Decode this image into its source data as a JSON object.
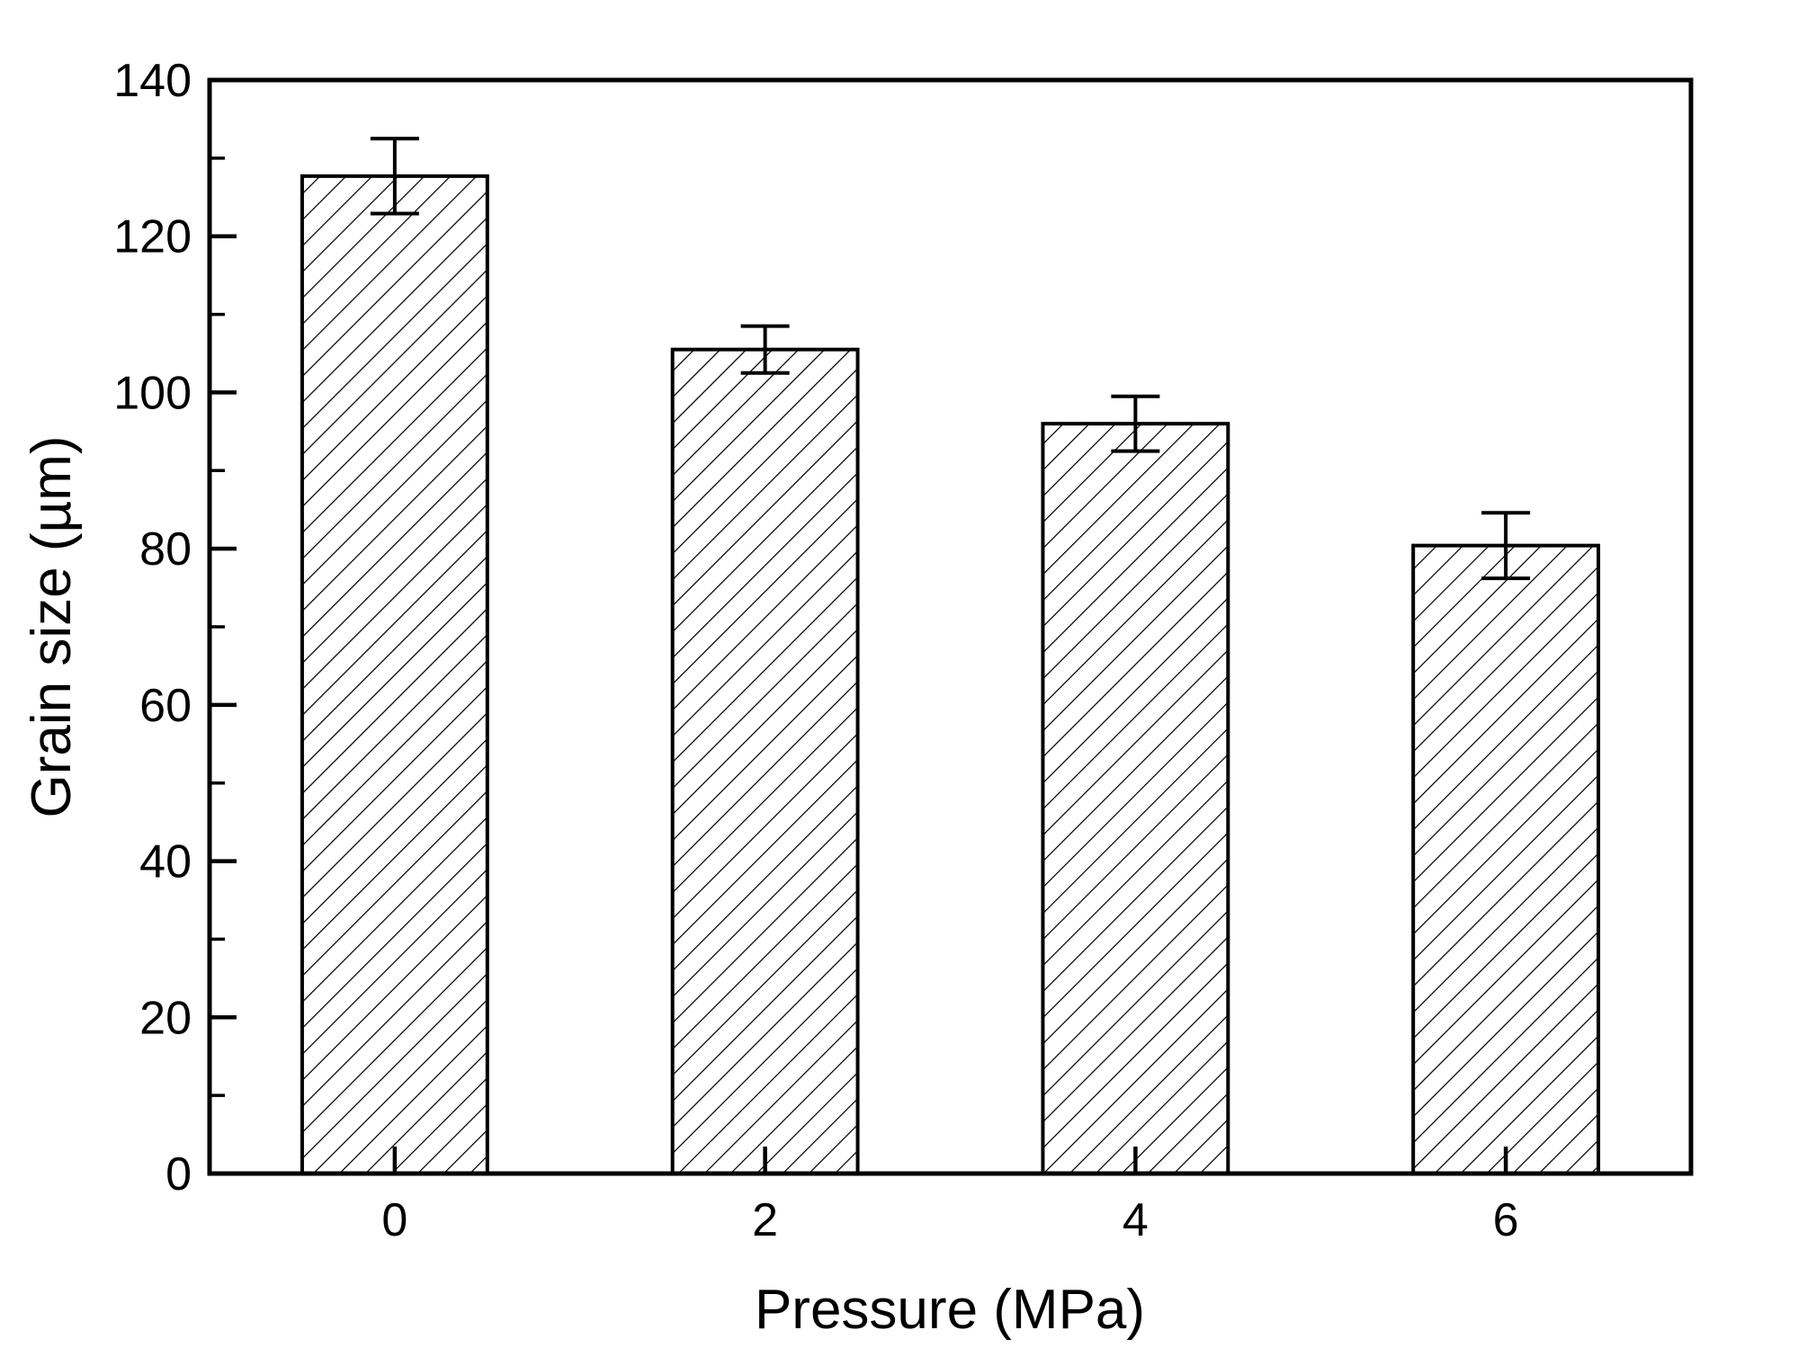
{
  "figure": {
    "background": "#ffffff",
    "line_color": "#000000"
  },
  "chart_data": {
    "type": "bar",
    "title": "",
    "xlabel": "Pressure (MPa)",
    "ylabel": "Grain size (µm)",
    "categories": [
      0,
      2,
      4,
      6
    ],
    "x_tick_labels": [
      "0",
      "2",
      "4",
      "6"
    ],
    "series": [
      {
        "name": "Grain size",
        "values": [
          127.7,
          105.5,
          96.0,
          80.4
        ],
        "errors": [
          4.8,
          3.0,
          3.5,
          4.2
        ]
      }
    ],
    "ylim": [
      0,
      140
    ],
    "y_major_step": 20,
    "y_minor_step": 10,
    "y_tick_labels": [
      "0",
      "20",
      "40",
      "60",
      "80",
      "100",
      "120",
      "140"
    ],
    "xlim": [
      -1,
      7
    ],
    "bar_width_data_units": 1.0,
    "grid": false,
    "legend": null,
    "frame": "box",
    "ticks": "inward",
    "hatch_pattern": "forward-diagonal",
    "bar_fill": "#ffffff",
    "bar_edge": "#000000"
  }
}
